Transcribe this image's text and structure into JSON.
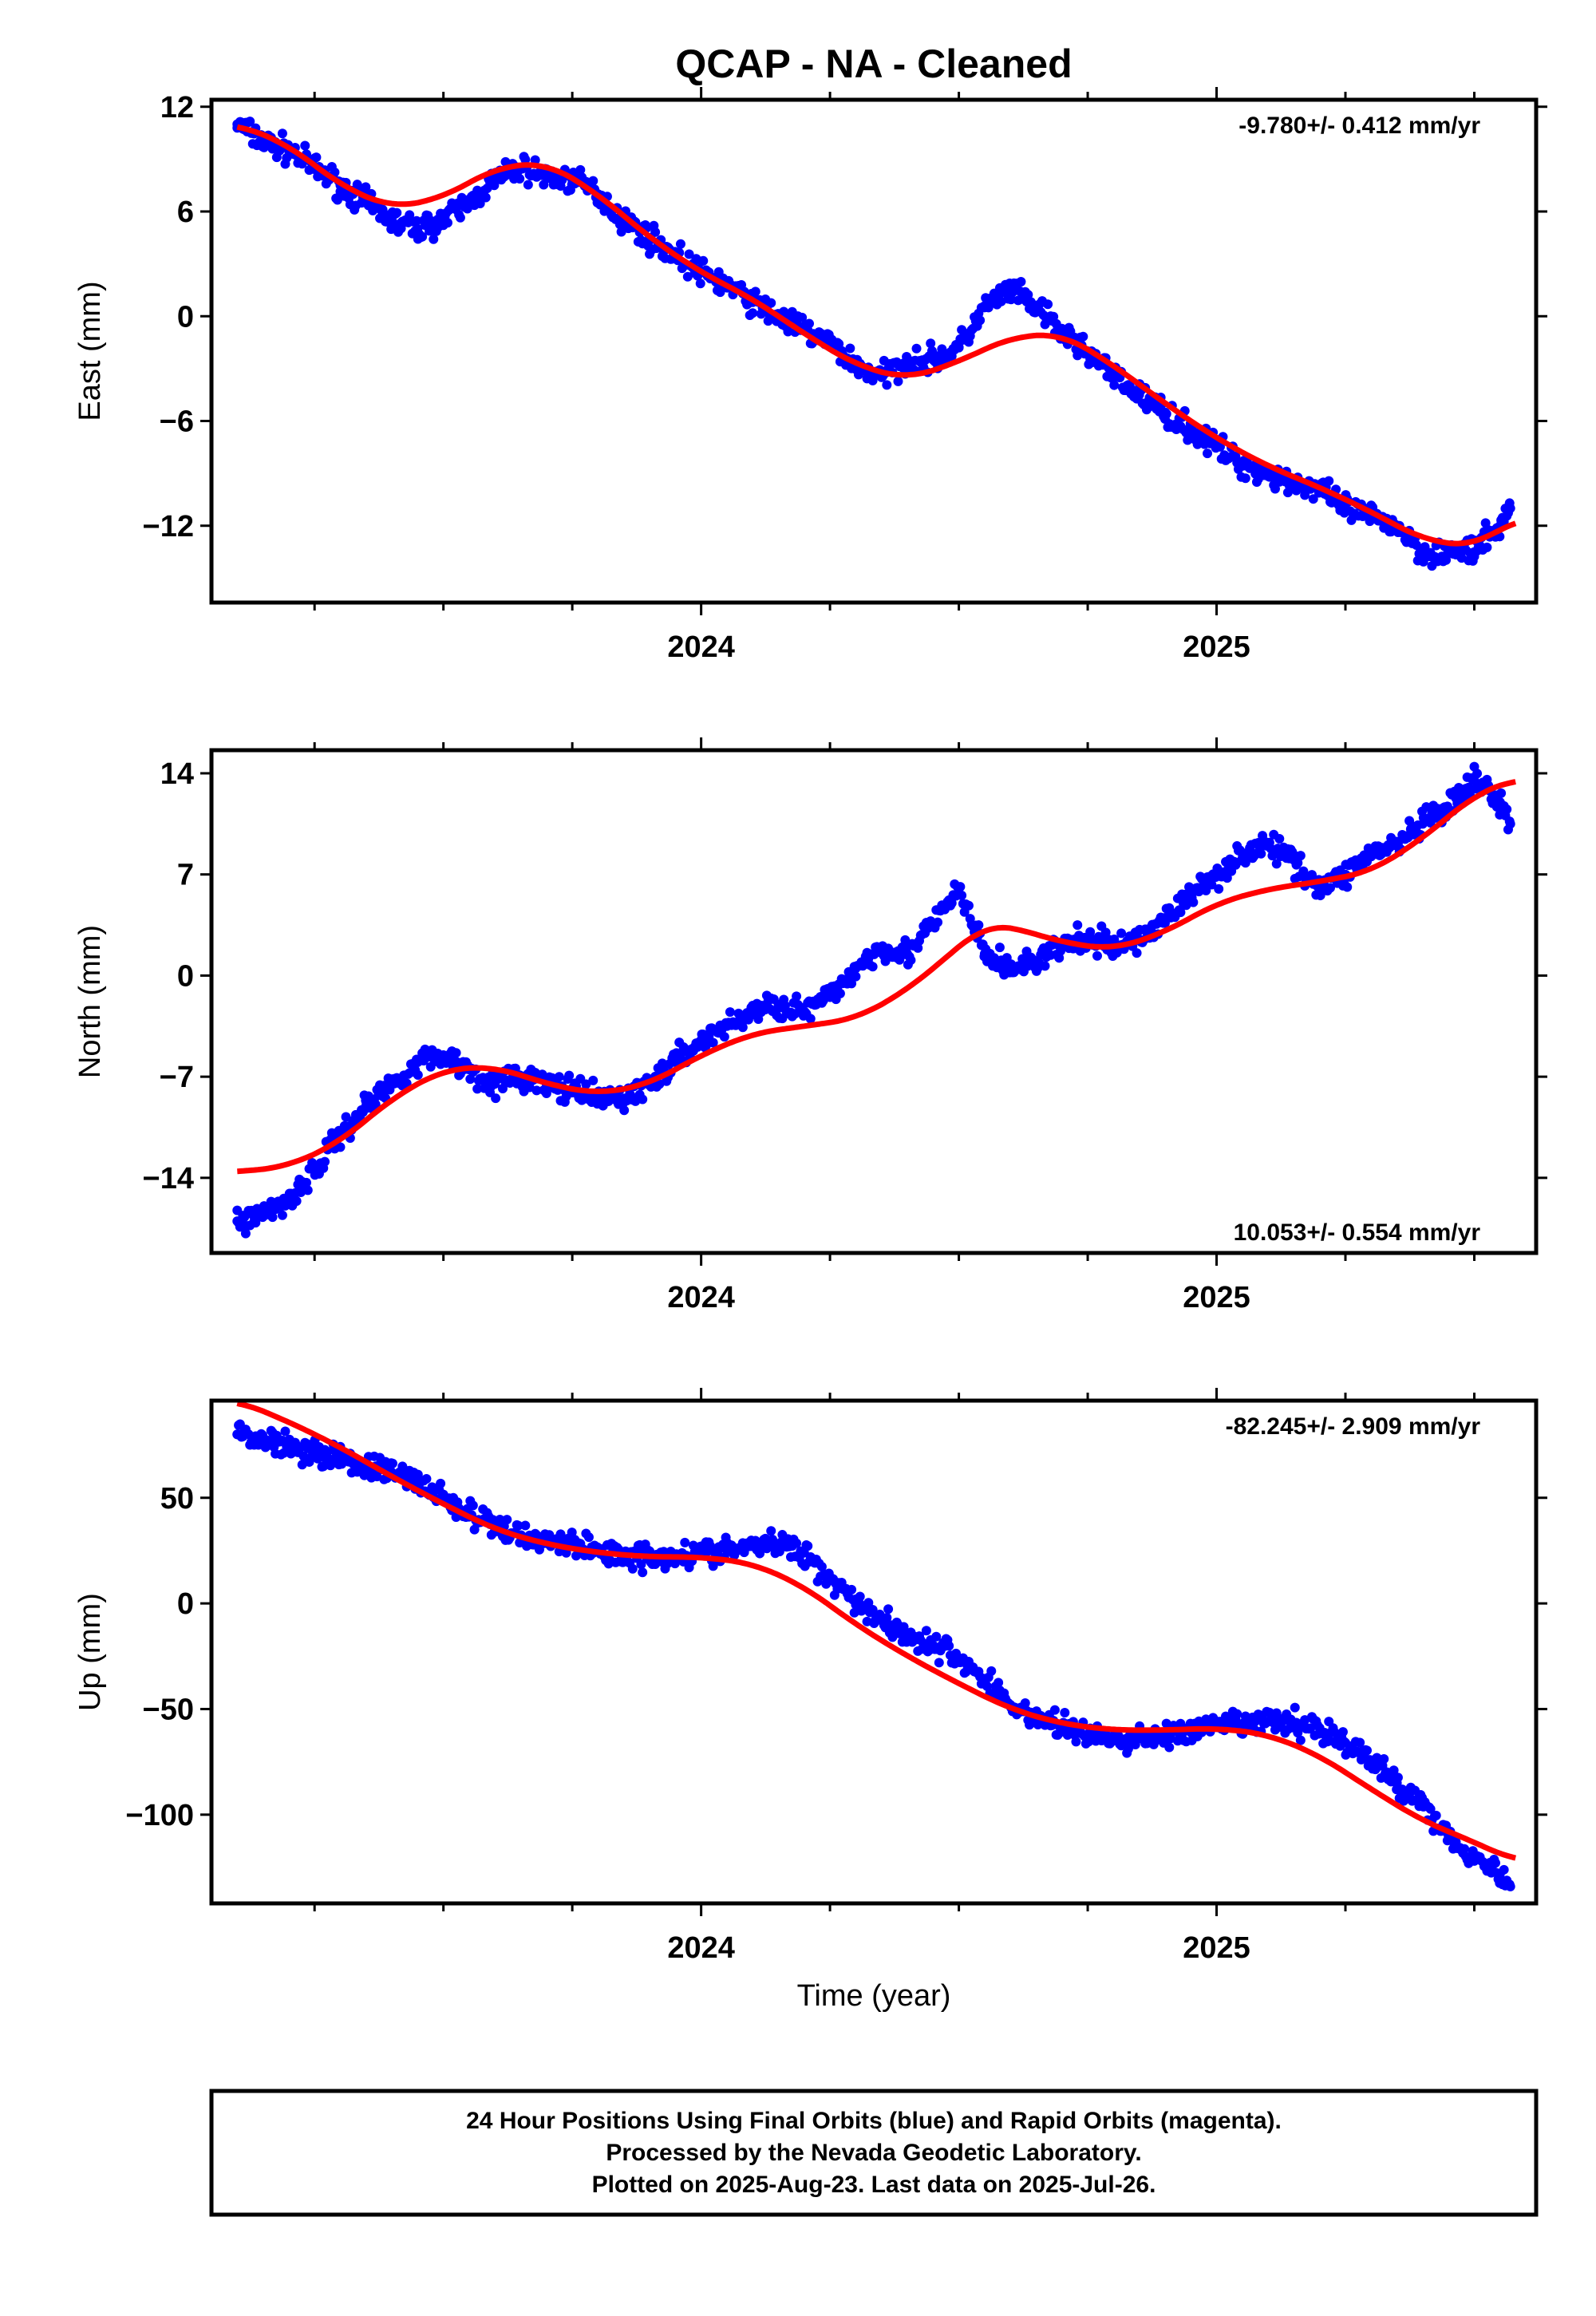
{
  "title": "QCAP  - NA - Cleaned",
  "colors": {
    "points": "#0000ff",
    "fit": "#ff0000",
    "frame": "#000000"
  },
  "chart_data": [
    {
      "type": "scatter",
      "ylabel": "East (mm)",
      "xlabel": "",
      "rate_label": "-9.780+/- 0.412 mm/yr",
      "rate_position": "top-right",
      "xlim": [
        2023.05,
        2025.62
      ],
      "ylim": [
        -16.4,
        12.4
      ],
      "yticks": [
        12,
        6,
        0,
        -6,
        -12
      ],
      "ytick_labels": [
        "12",
        "6",
        "0",
        "−6",
        "−12"
      ],
      "xticks_major": [
        2024,
        2025
      ],
      "xtick_labels": [
        "2024",
        "2025"
      ],
      "series": [
        {
          "kind": "points",
          "x": [
            2023.1,
            2023.15,
            2023.2,
            2023.25,
            2023.3,
            2023.35,
            2023.4,
            2023.45,
            2023.5,
            2023.55,
            2023.6,
            2023.65,
            2023.7,
            2023.75,
            2023.8,
            2023.85,
            2023.9,
            2023.95,
            2024.0,
            2024.05,
            2024.1,
            2024.15,
            2024.2,
            2024.25,
            2024.3,
            2024.35,
            2024.4,
            2024.45,
            2024.5,
            2024.55,
            2024.6,
            2024.65,
            2024.7,
            2024.75,
            2024.8,
            2024.85,
            2024.9,
            2024.95,
            2025.0,
            2025.05,
            2025.1,
            2025.15,
            2025.2,
            2025.25,
            2025.3,
            2025.35,
            2025.4,
            2025.45,
            2025.5,
            2025.55,
            2025.57
          ],
          "y": [
            11.0,
            10.0,
            9.5,
            8.5,
            7.5,
            6.5,
            5.5,
            5.0,
            5.5,
            6.5,
            7.8,
            8.5,
            8.0,
            7.8,
            7.0,
            5.5,
            4.5,
            3.5,
            2.5,
            1.8,
            0.8,
            0.0,
            -0.8,
            -1.5,
            -2.8,
            -3.5,
            -2.5,
            -2.5,
            -1.8,
            0.5,
            1.5,
            0.5,
            -1.0,
            -2.0,
            -3.5,
            -4.5,
            -5.5,
            -6.5,
            -7.5,
            -8.5,
            -9.0,
            -9.5,
            -10.0,
            -11.0,
            -11.5,
            -12.0,
            -13.5,
            -13.5,
            -13.5,
            -12.0,
            -11.0
          ]
        },
        {
          "kind": "fit",
          "x": [
            2023.1,
            2023.2,
            2023.3,
            2023.4,
            2023.5,
            2023.6,
            2023.7,
            2023.8,
            2023.9,
            2024.0,
            2024.1,
            2024.2,
            2024.3,
            2024.4,
            2024.5,
            2024.6,
            2024.7,
            2024.8,
            2024.9,
            2025.0,
            2025.1,
            2025.2,
            2025.3,
            2025.4,
            2025.5,
            2025.58
          ],
          "y": [
            11.0,
            9.8,
            7.5,
            6.2,
            6.8,
            8.5,
            8.8,
            7.0,
            4.5,
            2.5,
            1.0,
            -1.0,
            -2.8,
            -3.6,
            -2.6,
            -1.2,
            -1.0,
            -2.8,
            -5.0,
            -7.0,
            -8.6,
            -9.8,
            -11.2,
            -12.8,
            -13.2,
            -11.6
          ]
        }
      ]
    },
    {
      "type": "scatter",
      "ylabel": "North (mm)",
      "xlabel": "",
      "rate_label": "10.053+/- 0.554 mm/yr",
      "rate_position": "bottom-right",
      "xlim": [
        2023.05,
        2025.62
      ],
      "ylim": [
        -19.2,
        15.6
      ],
      "yticks": [
        14,
        7,
        0,
        -7,
        -14
      ],
      "ytick_labels": [
        "14",
        "7",
        "0",
        "−7",
        "−14"
      ],
      "xticks_major": [
        2024,
        2025
      ],
      "xtick_labels": [
        "2024",
        "2025"
      ],
      "series": [
        {
          "kind": "points",
          "x": [
            2023.1,
            2023.15,
            2023.2,
            2023.25,
            2023.3,
            2023.35,
            2023.4,
            2023.45,
            2023.5,
            2023.55,
            2023.6,
            2023.65,
            2023.7,
            2023.75,
            2023.8,
            2023.85,
            2023.9,
            2023.95,
            2024.0,
            2024.05,
            2024.1,
            2024.15,
            2024.2,
            2024.25,
            2024.3,
            2024.35,
            2024.4,
            2024.45,
            2024.5,
            2024.55,
            2024.6,
            2024.65,
            2024.7,
            2024.75,
            2024.8,
            2024.85,
            2024.9,
            2024.95,
            2025.0,
            2025.05,
            2025.1,
            2025.15,
            2025.2,
            2025.25,
            2025.3,
            2025.35,
            2025.4,
            2025.45,
            2025.5,
            2025.55,
            2025.57
          ],
          "y": [
            -17.0,
            -16.5,
            -15.5,
            -13.5,
            -11.0,
            -9.0,
            -7.5,
            -6.0,
            -5.5,
            -6.5,
            -7.5,
            -7.0,
            -7.5,
            -8.0,
            -8.5,
            -8.5,
            -7.5,
            -6.0,
            -4.5,
            -3.5,
            -2.5,
            -2.0,
            -2.5,
            -1.5,
            0.5,
            2.0,
            1.5,
            3.5,
            6.0,
            1.5,
            0.5,
            1.0,
            2.0,
            2.5,
            2.0,
            2.5,
            4.0,
            5.5,
            7.0,
            8.5,
            9.0,
            8.0,
            6.0,
            7.0,
            8.5,
            9.0,
            10.5,
            11.5,
            13.5,
            12.0,
            10.5
          ]
        },
        {
          "kind": "fit",
          "x": [
            2023.1,
            2023.2,
            2023.3,
            2023.4,
            2023.5,
            2023.6,
            2023.7,
            2023.8,
            2023.9,
            2024.0,
            2024.1,
            2024.2,
            2024.3,
            2024.4,
            2024.5,
            2024.55,
            2024.6,
            2024.7,
            2024.8,
            2024.9,
            2025.0,
            2025.1,
            2025.2,
            2025.3,
            2025.4,
            2025.5,
            2025.58
          ],
          "y": [
            -13.6,
            -13.2,
            -11.5,
            -8.5,
            -6.5,
            -6.3,
            -7.5,
            -8.2,
            -7.5,
            -5.5,
            -4.0,
            -3.5,
            -3.0,
            -1.0,
            2.0,
            3.5,
            3.4,
            2.3,
            1.8,
            3.0,
            5.0,
            6.0,
            6.5,
            7.2,
            9.5,
            12.5,
            13.6
          ]
        }
      ]
    },
    {
      "type": "scatter",
      "ylabel": "Up (mm)",
      "xlabel": "Time (year)",
      "rate_label": "-82.245+/- 2.909 mm/yr",
      "rate_position": "top-right",
      "xlim": [
        2023.05,
        2025.62
      ],
      "ylim": [
        -142,
        96
      ],
      "yticks": [
        50,
        0,
        -50,
        -100
      ],
      "ytick_labels": [
        "50",
        "0",
        "−50",
        "−100"
      ],
      "xticks_major": [
        2024,
        2025
      ],
      "xtick_labels": [
        "2024",
        "2025"
      ],
      "series": [
        {
          "kind": "points",
          "x": [
            2023.1,
            2023.15,
            2023.2,
            2023.25,
            2023.3,
            2023.35,
            2023.4,
            2023.45,
            2023.5,
            2023.55,
            2023.6,
            2023.65,
            2023.7,
            2023.75,
            2023.8,
            2023.85,
            2023.9,
            2023.95,
            2024.0,
            2024.05,
            2024.1,
            2024.15,
            2024.2,
            2024.25,
            2024.3,
            2024.35,
            2024.4,
            2024.45,
            2024.5,
            2024.55,
            2024.6,
            2024.65,
            2024.7,
            2024.75,
            2024.8,
            2024.85,
            2024.9,
            2024.95,
            2025.0,
            2025.05,
            2025.1,
            2025.15,
            2025.2,
            2025.25,
            2025.3,
            2025.35,
            2025.4,
            2025.45,
            2025.5,
            2025.55,
            2025.57
          ],
          "y": [
            80,
            78,
            75,
            72,
            69,
            65,
            62,
            58,
            50,
            42,
            36,
            32,
            30,
            28,
            25,
            23,
            22,
            23,
            24,
            25,
            27,
            28,
            24,
            12,
            2,
            -8,
            -15,
            -20,
            -26,
            -36,
            -48,
            -54,
            -58,
            -62,
            -65,
            -64,
            -62,
            -61,
            -58,
            -57,
            -56,
            -57,
            -59,
            -66,
            -75,
            -85,
            -95,
            -110,
            -120,
            -128,
            -134
          ]
        },
        {
          "kind": "fit",
          "x": [
            2023.1,
            2023.2,
            2023.3,
            2023.4,
            2023.5,
            2023.6,
            2023.7,
            2023.8,
            2023.9,
            2024.0,
            2024.1,
            2024.2,
            2024.3,
            2024.4,
            2024.5,
            2024.6,
            2024.7,
            2024.8,
            2024.9,
            2025.0,
            2025.1,
            2025.2,
            2025.3,
            2025.4,
            2025.5,
            2025.58
          ],
          "y": [
            96,
            86,
            74,
            60,
            47,
            35,
            28,
            24,
            22,
            22,
            19,
            8,
            -10,
            -25,
            -38,
            -50,
            -57,
            -60,
            -60,
            -59,
            -62,
            -72,
            -88,
            -103,
            -113,
            -122
          ]
        }
      ]
    }
  ],
  "footer": {
    "line1": "24 Hour Positions Using Final Orbits (blue) and Rapid Orbits (magenta).",
    "line2": "Processed by the Nevada Geodetic Laboratory.",
    "line3": "Plotted on 2025-Aug-23. Last data on 2025-Jul-26."
  }
}
